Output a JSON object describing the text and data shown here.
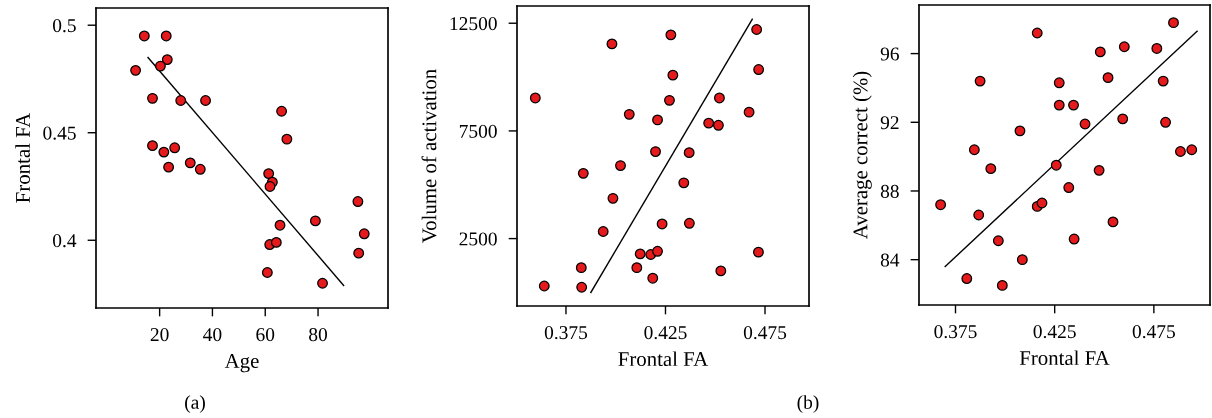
{
  "chart_data": [
    {
      "type": "scatter",
      "xlabel": "Age",
      "ylabel": "Frontal FA",
      "annotations": [
        "(a)"
      ],
      "xlim": [
        -4.1,
        106.5
      ],
      "ylim": [
        0.3685,
        0.508
      ],
      "xticks": [
        20,
        40,
        60,
        80
      ],
      "yticks": [
        0.4,
        0.45,
        0.5
      ],
      "grid": false,
      "series": [
        {
          "marker": "circle",
          "color": "#e41a1c",
          "x": [
            14.2,
            22.5,
            22.9,
            20.3,
            10.9,
            17.3,
            28.0,
            37.4,
            66.2,
            68.2,
            17.3,
            21.6,
            25.7,
            23.4,
            31.6,
            35.4,
            61.3,
            62.7,
            61.8,
            95.1,
            79.0,
            65.6,
            97.5,
            61.7,
            64.2,
            95.4,
            60.8,
            81.7
          ],
          "values": [
            0.495,
            0.495,
            0.484,
            0.481,
            0.479,
            0.466,
            0.465,
            0.465,
            0.46,
            0.447,
            0.444,
            0.441,
            0.443,
            0.434,
            0.436,
            0.433,
            0.431,
            0.427,
            0.425,
            0.418,
            0.409,
            0.407,
            0.403,
            0.398,
            0.399,
            0.394,
            0.385,
            0.38
          ]
        },
        {
          "type": "line",
          "color": "#000000",
          "x": [
            15.6,
            89.7
          ],
          "values": [
            0.485,
            0.379
          ]
        }
      ]
    },
    {
      "type": "scatter",
      "xlabel": "Frontal FA",
      "ylabel": "Volume of activation",
      "annotations": [
        "(b)"
      ],
      "xlim": [
        0.3504,
        0.4971
      ],
      "ylim": [
        -630,
        13300
      ],
      "xticks": [
        0.375,
        0.425,
        0.475
      ],
      "yticks": [
        2500,
        7500,
        12500
      ],
      "grid": false,
      "series": [
        {
          "marker": "circle",
          "color": "#e41a1c",
          "x": [
            0.3596,
            0.3641,
            0.3829,
            0.3827,
            0.3837,
            0.3937,
            0.3981,
            0.3986,
            0.4024,
            0.4068,
            0.4106,
            0.4123,
            0.4176,
            0.421,
            0.4186,
            0.42,
            0.421,
            0.4233,
            0.427,
            0.4277,
            0.4287,
            0.4342,
            0.4369,
            0.437,
            0.4467,
            0.4516,
            0.4521,
            0.4528,
            0.467,
            0.4708,
            0.4718,
            0.4717
          ],
          "values": [
            9030,
            300,
            240,
            1150,
            5530,
            2830,
            11540,
            4370,
            5890,
            8270,
            1150,
            1790,
            1760,
            1910,
            660,
            6540,
            8010,
            3180,
            8920,
            11960,
            10090,
            5090,
            6490,
            3210,
            7860,
            7760,
            9030,
            1000,
            8370,
            12210,
            10350,
            1870
          ]
        },
        {
          "type": "line",
          "color": "#000000",
          "x": [
            0.3875,
            0.4686
          ],
          "values": [
            0,
            12690
          ]
        }
      ]
    },
    {
      "type": "scatter",
      "xlabel": "Frontal FA",
      "ylabel": "Average correct (%)",
      "xlim": [
        0.3566,
        0.5033
      ],
      "ylim": [
        81.36,
        98.83
      ],
      "xticks": [
        0.375,
        0.425,
        0.475
      ],
      "yticks": [
        84,
        88,
        92,
        96
      ],
      "grid": false,
      "series": [
        {
          "marker": "circle",
          "color": "#e41a1c",
          "x": [
            0.3675,
            0.3807,
            0.3845,
            0.3867,
            0.3874,
            0.3928,
            0.3966,
            0.3986,
            0.4075,
            0.4087,
            0.4162,
            0.4162,
            0.4186,
            0.4258,
            0.4273,
            0.4273,
            0.4321,
            0.4345,
            0.4348,
            0.4403,
            0.4474,
            0.448,
            0.4519,
            0.4544,
            0.4593,
            0.4601,
            0.4765,
            0.4797,
            0.4809,
            0.4849,
            0.4884,
            0.4941
          ],
          "values": [
            87.2,
            82.9,
            90.4,
            86.6,
            94.4,
            89.3,
            85.1,
            82.5,
            91.5,
            84.0,
            97.2,
            87.1,
            87.3,
            89.5,
            94.3,
            93.0,
            88.2,
            93.0,
            85.2,
            91.9,
            89.2,
            96.1,
            94.6,
            86.2,
            92.2,
            96.4,
            96.3,
            94.4,
            92.0,
            97.8,
            90.3,
            90.4
          ]
        },
        {
          "type": "line",
          "color": "#000000",
          "x": [
            0.3698,
            0.4968
          ],
          "values": [
            83.6,
            97.3
          ]
        }
      ]
    }
  ]
}
